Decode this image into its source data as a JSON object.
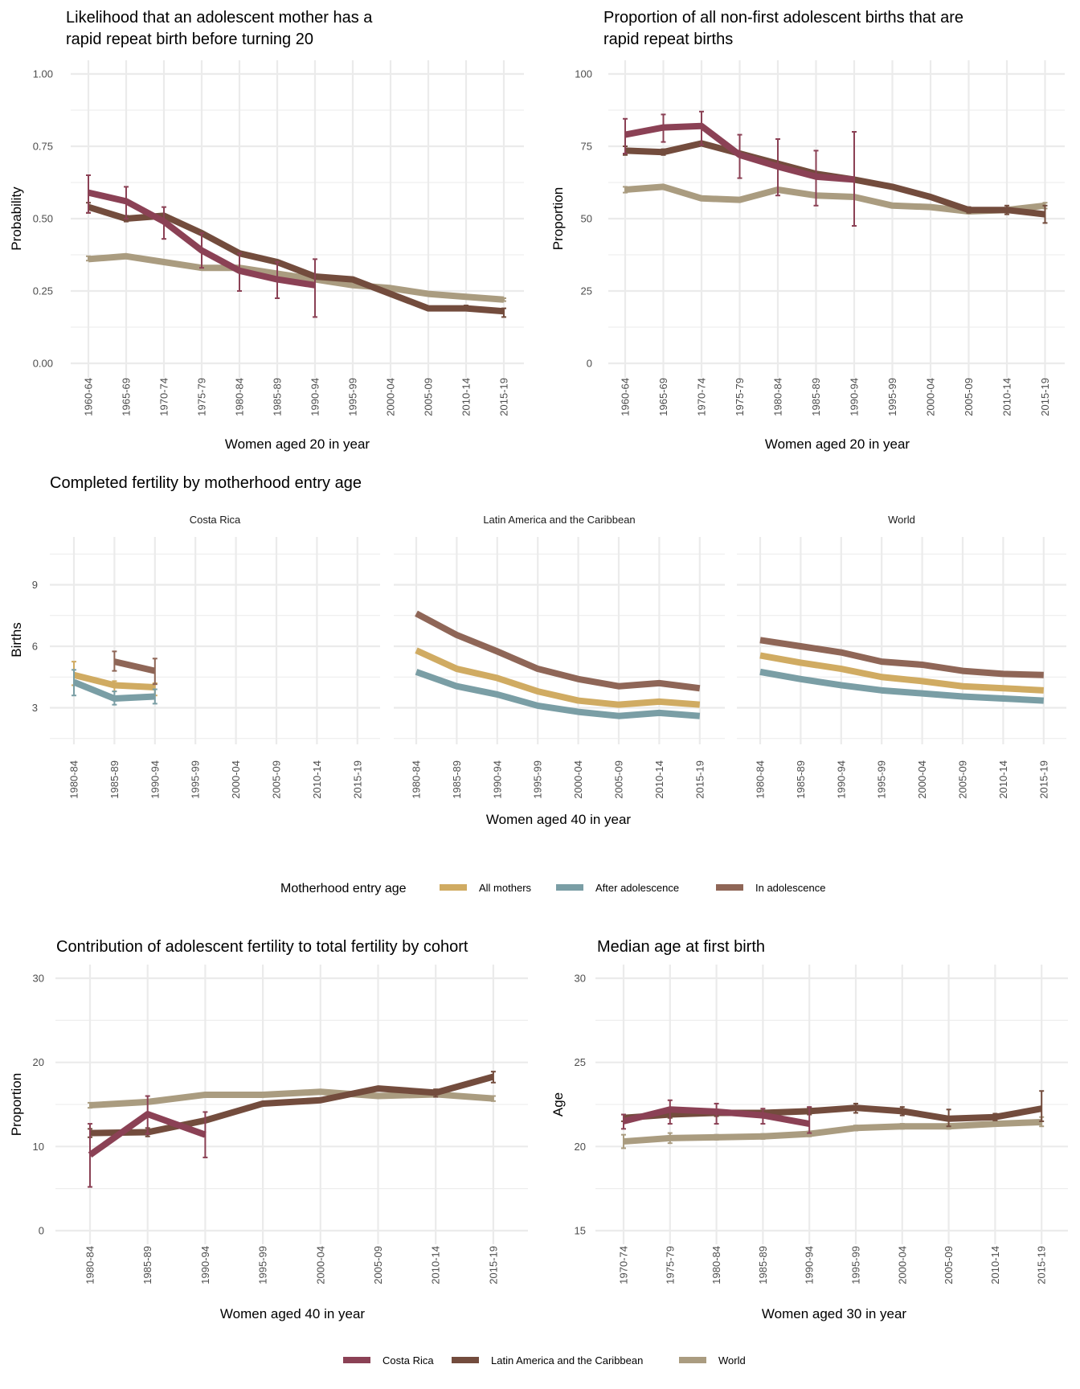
{
  "colors": {
    "Costa Rica": "#8b4155",
    "Latin America and the Caribbean": "#734c3d",
    "World": "#aa9c80",
    "All mothers": "#d0ab62",
    "After adolescence": "#7a9ea5",
    "In adolescence": "#8f6657"
  },
  "legend_motherhood": {
    "title": "Motherhood entry age",
    "items": [
      "All mothers",
      "After adolescence",
      "In adolescence"
    ]
  },
  "legend_region": {
    "items": [
      "Costa Rica",
      "Latin America and the Caribbean",
      "World"
    ]
  },
  "chart_data": [
    {
      "id": "rapid-repeat-likelihood",
      "type": "line",
      "title": "Likelihood that an adolescent mother has a rapid repeat birth before turning 20",
      "title_lines": [
        "Likelihood that an adolescent mother has a",
        "rapid repeat birth before turning 20"
      ],
      "xlabel": "Women aged 20 in year",
      "ylabel": "Probability",
      "ylim": [
        0,
        1
      ],
      "yticks": [
        0,
        0.25,
        0.5,
        0.75,
        1
      ],
      "ytick_labels": [
        "0.00",
        "0.25",
        "0.50",
        "0.75",
        "1.00"
      ],
      "grid": true,
      "categories": [
        "1960-64",
        "1965-69",
        "1970-74",
        "1975-79",
        "1980-84",
        "1985-89",
        "1990-94",
        "1995-99",
        "2000-04",
        "2005-09",
        "2010-14",
        "2015-19"
      ],
      "series": [
        {
          "name": "World",
          "values": [
            0.36,
            0.37,
            0.35,
            0.33,
            0.33,
            0.31,
            0.29,
            0.27,
            0.26,
            0.24,
            0.23,
            0.22
          ],
          "lower": [
            0.355,
            null,
            null,
            null,
            null,
            null,
            null,
            null,
            null,
            null,
            null,
            0.215
          ],
          "upper": [
            0.37,
            null,
            null,
            null,
            null,
            null,
            null,
            null,
            null,
            null,
            null,
            0.225
          ]
        },
        {
          "name": "Latin America and the Caribbean",
          "values": [
            0.54,
            0.5,
            0.51,
            0.45,
            0.38,
            0.35,
            0.3,
            0.29,
            0.24,
            0.19,
            0.19,
            0.18
          ],
          "lower": [
            0.52,
            0.49,
            null,
            null,
            null,
            null,
            null,
            0.285,
            null,
            null,
            0.19,
            0.16
          ],
          "upper": [
            0.555,
            0.51,
            null,
            null,
            null,
            null,
            null,
            0.295,
            null,
            null,
            0.2,
            0.19
          ]
        },
        {
          "name": "Costa Rica",
          "values": [
            0.59,
            0.56,
            0.49,
            0.39,
            0.32,
            0.29,
            0.27,
            null,
            null,
            null,
            null,
            null
          ],
          "lower": [
            0.52,
            0.5,
            0.43,
            0.33,
            0.25,
            0.225,
            0.16,
            null,
            null,
            null,
            null,
            null
          ],
          "upper": [
            0.65,
            0.61,
            0.54,
            0.45,
            0.38,
            0.35,
            0.36,
            null,
            null,
            null,
            null,
            null
          ]
        }
      ]
    },
    {
      "id": "rapid-repeat-proportion",
      "type": "line",
      "title": "Proportion of all non-first adolescent births that are rapid repeat births",
      "title_lines": [
        "Proportion of all non-first adolescent births that are",
        "rapid repeat births"
      ],
      "xlabel": "Women aged 20 in year",
      "ylabel": "Proportion",
      "ylim": [
        0,
        100
      ],
      "yticks": [
        0,
        25,
        50,
        75,
        100
      ],
      "ytick_labels": [
        "0",
        "25",
        "50",
        "75",
        "100"
      ],
      "grid": true,
      "categories": [
        "1960-64",
        "1965-69",
        "1970-74",
        "1975-79",
        "1980-84",
        "1985-89",
        "1990-94",
        "1995-99",
        "2000-04",
        "2005-09",
        "2010-14",
        "2015-19"
      ],
      "series": [
        {
          "name": "World",
          "values": [
            60,
            61,
            57,
            56.5,
            60,
            58,
            57.5,
            54.5,
            54,
            52.5,
            53,
            54.5
          ],
          "lower": [
            59,
            null,
            null,
            null,
            null,
            null,
            null,
            null,
            null,
            52,
            null,
            53.5
          ],
          "upper": [
            61,
            null,
            null,
            null,
            null,
            null,
            null,
            null,
            null,
            53,
            null,
            55.5
          ]
        },
        {
          "name": "Latin America and the Caribbean",
          "values": [
            73.5,
            73,
            76,
            72.5,
            69,
            65.5,
            63.5,
            61,
            57.5,
            53,
            53,
            51.5
          ],
          "lower": [
            72,
            72,
            null,
            null,
            null,
            null,
            null,
            null,
            null,
            52,
            51.5,
            48.5
          ],
          "upper": [
            75,
            74,
            null,
            null,
            null,
            null,
            null,
            null,
            null,
            54,
            54.5,
            54.5
          ]
        },
        {
          "name": "Costa Rica",
          "values": [
            79,
            81.5,
            82,
            72,
            68,
            64.5,
            63.5,
            null,
            null,
            null,
            null,
            null
          ],
          "lower": [
            72.5,
            76.5,
            75.5,
            64,
            58,
            54.5,
            47.5,
            null,
            null,
            null,
            null,
            null
          ],
          "upper": [
            84.5,
            86,
            87,
            79,
            77.5,
            73.5,
            80,
            null,
            null,
            null,
            null,
            null
          ]
        }
      ]
    },
    {
      "id": "completed-fertility",
      "type": "line",
      "title": "Completed fertility by motherhood entry age",
      "xlabel": "Women aged 40 in year",
      "ylabel": "Births",
      "ylim": [
        1,
        11.4
      ],
      "yticks": [
        3,
        6,
        9
      ],
      "ytick_labels": [
        "3",
        "6",
        "9"
      ],
      "grid": true,
      "legend": "bottom",
      "categories": [
        "1980-84",
        "1985-89",
        "1990-94",
        "1995-99",
        "2000-04",
        "2005-09",
        "2010-14",
        "2015-19"
      ],
      "facets": [
        {
          "name": "Costa Rica",
          "series": [
            {
              "name": "All mothers",
              "values": [
                4.6,
                4.1,
                4.0,
                null,
                null,
                null,
                null,
                null
              ],
              "lower": [
                4.1,
                3.8,
                3.6,
                null,
                null,
                null,
                null,
                null
              ],
              "upper": [
                5.25,
                4.3,
                4.2,
                null,
                null,
                null,
                null,
                null
              ]
            },
            {
              "name": "After adolescence",
              "values": [
                4.25,
                3.45,
                3.55,
                null,
                null,
                null,
                null,
                null
              ],
              "lower": [
                3.6,
                3.15,
                3.2,
                null,
                null,
                null,
                null,
                null
              ],
              "upper": [
                4.85,
                3.8,
                3.9,
                null,
                null,
                null,
                null,
                null
              ]
            },
            {
              "name": "In adolescence",
              "values": [
                null,
                5.25,
                4.8,
                null,
                null,
                null,
                null,
                null
              ],
              "lower": [
                null,
                4.8,
                4.15,
                null,
                null,
                null,
                null,
                null
              ],
              "upper": [
                null,
                5.75,
                5.4,
                null,
                null,
                null,
                null,
                null
              ]
            }
          ]
        },
        {
          "name": "Latin America and the Caribbean",
          "series": [
            {
              "name": "All mothers",
              "values": [
                5.8,
                4.9,
                4.45,
                3.8,
                3.35,
                3.15,
                3.3,
                3.15
              ]
            },
            {
              "name": "After adolescence",
              "values": [
                4.75,
                4.05,
                3.65,
                3.1,
                2.8,
                2.6,
                2.75,
                2.6
              ]
            },
            {
              "name": "In adolescence",
              "values": [
                7.6,
                6.55,
                5.75,
                4.9,
                4.4,
                4.05,
                4.2,
                3.95
              ]
            }
          ]
        },
        {
          "name": "World",
          "series": [
            {
              "name": "All mothers",
              "values": [
                5.55,
                5.2,
                4.9,
                4.5,
                4.3,
                4.05,
                3.95,
                3.85
              ]
            },
            {
              "name": "After adolescence",
              "values": [
                4.75,
                4.4,
                4.1,
                3.85,
                3.7,
                3.55,
                3.45,
                3.35
              ]
            },
            {
              "name": "In adolescence",
              "values": [
                6.3,
                6.0,
                5.7,
                5.25,
                5.1,
                4.8,
                4.65,
                4.6
              ]
            }
          ]
        }
      ]
    },
    {
      "id": "adolescent-contribution",
      "type": "line",
      "title": "Contribution of adolescent fertility to total fertility by cohort",
      "xlabel": "Women aged 40 in year",
      "ylabel": "Proportion",
      "ylim": [
        0,
        30
      ],
      "yticks": [
        0,
        10,
        20,
        30
      ],
      "ytick_labels": [
        "0",
        "10",
        "20",
        "30"
      ],
      "grid": true,
      "categories": [
        "1980-84",
        "1985-89",
        "1990-94",
        "1995-99",
        "2000-04",
        "2005-09",
        "2010-14",
        "2015-19"
      ],
      "series": [
        {
          "name": "World",
          "values": [
            14.9,
            15.3,
            16.15,
            16.15,
            16.5,
            16.0,
            16.2,
            15.7
          ],
          "lower": [
            14.6,
            null,
            null,
            null,
            null,
            null,
            null,
            15.4
          ],
          "upper": [
            15.2,
            null,
            null,
            null,
            null,
            null,
            null,
            16.0
          ]
        },
        {
          "name": "Latin America and the Caribbean",
          "values": [
            11.6,
            11.7,
            13.1,
            15.1,
            15.5,
            16.9,
            16.4,
            18.3
          ],
          "lower": [
            11.1,
            11.2,
            null,
            null,
            null,
            null,
            15.9,
            17.6
          ],
          "upper": [
            12.1,
            12.2,
            null,
            null,
            null,
            null,
            16.8,
            18.9
          ]
        },
        {
          "name": "Costa Rica",
          "values": [
            9.0,
            13.85,
            11.4,
            null,
            null,
            null,
            null,
            null
          ],
          "lower": [
            5.2,
            11.5,
            8.7,
            null,
            null,
            null,
            null,
            null
          ],
          "upper": [
            12.7,
            16.0,
            14.1,
            null,
            null,
            null,
            null,
            null
          ]
        }
      ]
    },
    {
      "id": "median-age-first-birth",
      "type": "line",
      "title": "Median age at first birth",
      "xlabel": "Women aged 30 in year",
      "ylabel": "Age",
      "ylim": [
        15,
        30
      ],
      "yticks": [
        15,
        20,
        25,
        30
      ],
      "ytick_labels": [
        "15",
        "20",
        "25",
        "30"
      ],
      "grid": true,
      "legend": "bottom",
      "categories": [
        "1970-74",
        "1975-79",
        "1980-84",
        "1985-89",
        "1990-94",
        "1995-99",
        "2000-04",
        "2005-09",
        "2010-14",
        "2015-19"
      ],
      "series": [
        {
          "name": "World",
          "values": [
            20.3,
            20.5,
            20.55,
            20.6,
            20.75,
            21.1,
            21.2,
            21.2,
            21.35,
            21.45
          ],
          "lower": [
            19.9,
            20.2,
            20.4,
            20.45,
            20.6,
            20.95,
            21.05,
            21.05,
            21.25,
            21.2
          ],
          "upper": [
            20.7,
            20.8,
            20.7,
            20.75,
            20.9,
            21.25,
            21.35,
            21.35,
            21.5,
            21.75
          ]
        },
        {
          "name": "Latin America and the Caribbean",
          "values": [
            21.7,
            21.9,
            22.0,
            22.0,
            22.1,
            22.3,
            22.1,
            21.65,
            21.75,
            22.25
          ],
          "lower": [
            21.5,
            21.7,
            21.8,
            21.85,
            21.9,
            22.0,
            21.85,
            21.2,
            21.55,
            21.5
          ],
          "upper": [
            21.9,
            22.1,
            22.2,
            22.15,
            22.3,
            22.55,
            22.35,
            22.2,
            21.95,
            23.3
          ]
        },
        {
          "name": "Costa Rica",
          "values": [
            21.5,
            22.2,
            22.07,
            21.85,
            21.35,
            null,
            null,
            null,
            null,
            null
          ],
          "lower": [
            21.05,
            21.35,
            21.35,
            21.35,
            20.8,
            null,
            null,
            null,
            null,
            null
          ],
          "upper": [
            21.9,
            22.75,
            22.55,
            22.25,
            22.35,
            null,
            null,
            null,
            null,
            null
          ]
        }
      ]
    }
  ]
}
